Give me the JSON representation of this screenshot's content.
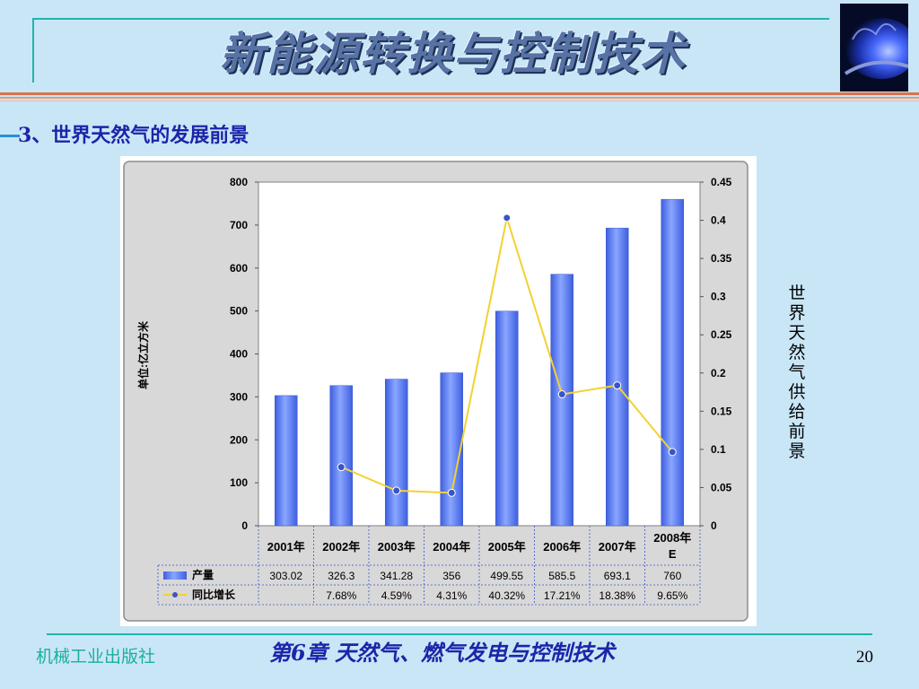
{
  "header": {
    "title": "新能源转换与控制技术"
  },
  "section": {
    "subtitle": "3、世界天然气的发展前景"
  },
  "side_label": "世界天然气供给前景",
  "footer": {
    "publisher": "机械工业出版社",
    "chapter": "第6章  天然气、燃气发电与控制技术",
    "page": "20"
  },
  "colors": {
    "bar": "#5b7ff0",
    "line": "#f2d230",
    "marker": "#3a55c8",
    "accent": "#21b5a8",
    "title_blue": "#1d24a8"
  },
  "icons": {
    "flame": "gas-flame-image"
  },
  "chart_data": {
    "type": "bar",
    "categories": [
      "2001年",
      "2002年",
      "2003年",
      "2004年",
      "2005年",
      "2006年",
      "2007年",
      "2008年E"
    ],
    "ylabel": "单位:亿立方米",
    "ylim": [
      0,
      800
    ],
    "yticks": [
      "0",
      "100",
      "200",
      "300",
      "400",
      "500",
      "600",
      "700",
      "800"
    ],
    "y2lim": [
      0,
      0.45
    ],
    "y2ticks": [
      "0",
      "0.05",
      "0.1",
      "0.15",
      "0.2",
      "0.25",
      "0.3",
      "0.35",
      "0.4",
      "0.45"
    ],
    "series": [
      {
        "name": "产量",
        "type": "bar",
        "values": [
          303.02,
          326.3,
          341.28,
          356,
          499.55,
          585.5,
          693.1,
          760
        ],
        "labels": [
          "303.02",
          "326.3",
          "341.28",
          "356",
          "499.55",
          "585.5",
          "693.1",
          "760"
        ]
      },
      {
        "name": "同比增长",
        "type": "line",
        "axis": "right",
        "values": [
          null,
          0.0768,
          0.0459,
          0.0431,
          0.4032,
          0.1721,
          0.1838,
          0.0965
        ],
        "labels": [
          "",
          "7.68%",
          "4.59%",
          "4.31%",
          "40.32%",
          "17.21%",
          "18.38%",
          "9.65%"
        ]
      }
    ],
    "grid": false,
    "legend": "data-table-below"
  }
}
